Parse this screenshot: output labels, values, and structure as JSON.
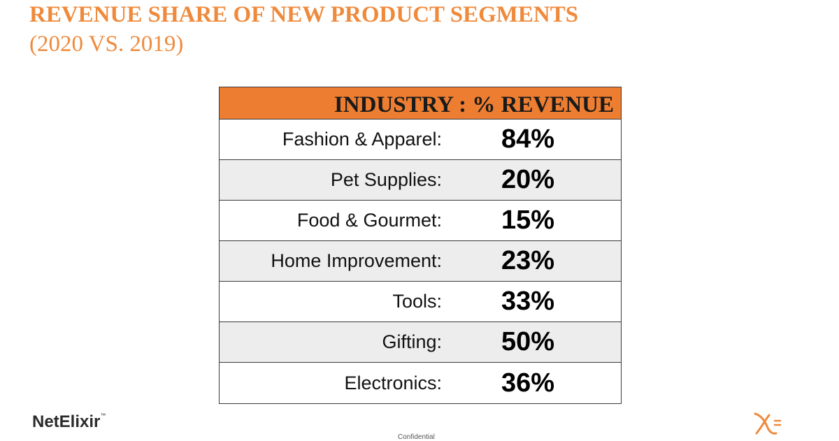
{
  "slide": {
    "title": "REVENUE SHARE OF NEW PRODUCT SEGMENTS",
    "subtitle": "(2020 VS. 2019)"
  },
  "table": {
    "header": "INDUSTRY : % REVENUE",
    "rows": [
      {
        "industry": "Fashion & Apparel:",
        "revenue": "84%"
      },
      {
        "industry": "Pet Supplies:",
        "revenue": "20%"
      },
      {
        "industry": "Food & Gourmet:",
        "revenue": "15%"
      },
      {
        "industry": "Home Improvement:",
        "revenue": "23%"
      },
      {
        "industry": "Tools:",
        "revenue": "33%"
      },
      {
        "industry": "Gifting:",
        "revenue": "50%"
      },
      {
        "industry": "Electronics:",
        "revenue": "36%"
      }
    ]
  },
  "footer": {
    "logo_text": "NetElixir",
    "trademark": "™",
    "confidential": "Confidential",
    "corner_icon": "netelixir-x-icon"
  },
  "colors": {
    "accent": "#ef8a3c",
    "header_fill": "#ed7d31",
    "alt_row": "#ededed"
  }
}
